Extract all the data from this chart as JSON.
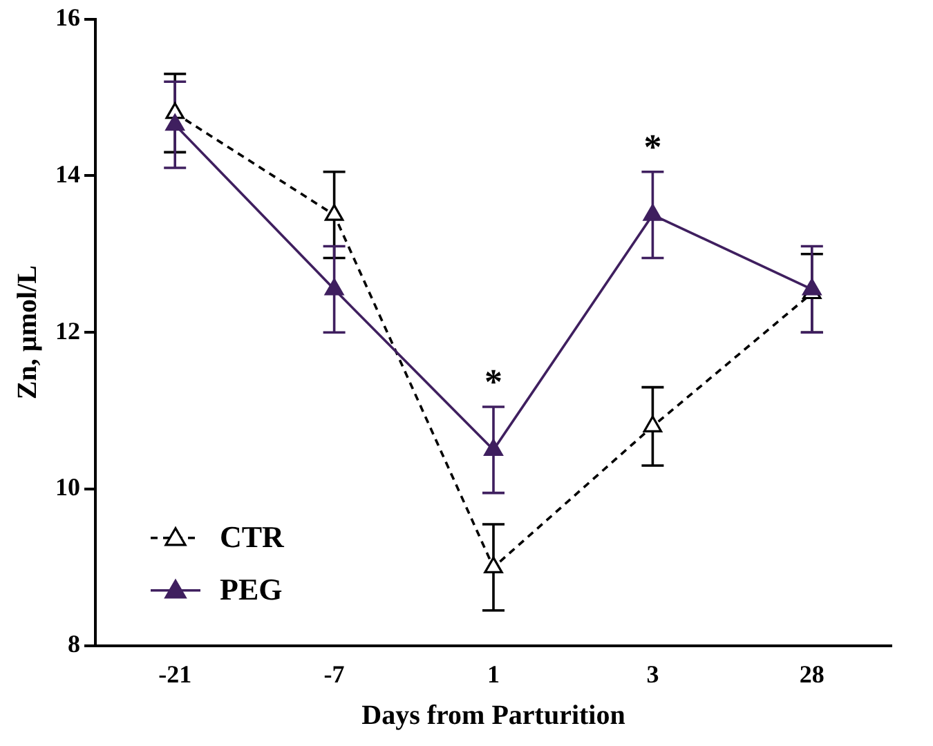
{
  "chart_data": {
    "type": "line",
    "xlabel": "Days from Parturition",
    "ylabel": "Zn, µmol/L",
    "categories": [
      "-21",
      "-7",
      "1",
      "3",
      "28"
    ],
    "ylim": [
      8,
      16
    ],
    "yticks": [
      8,
      10,
      12,
      14,
      16
    ],
    "grid": false,
    "legend": "bottom left",
    "marker": "triangle",
    "series": [
      {
        "name": "CTR",
        "color": "#000000",
        "line_style": "dashed",
        "values": [
          14.8,
          13.5,
          9.0,
          10.8,
          12.5
        ],
        "errors": [
          0.5,
          0.55,
          0.55,
          0.5,
          0.5
        ]
      },
      {
        "name": "PEG",
        "color": "#3f1f5f",
        "line_style": "solid",
        "values": [
          14.65,
          12.55,
          10.5,
          13.5,
          12.55
        ],
        "errors": [
          0.55,
          0.55,
          0.55,
          0.55,
          0.55
        ]
      }
    ],
    "annotations": [
      "*",
      "*"
    ]
  }
}
